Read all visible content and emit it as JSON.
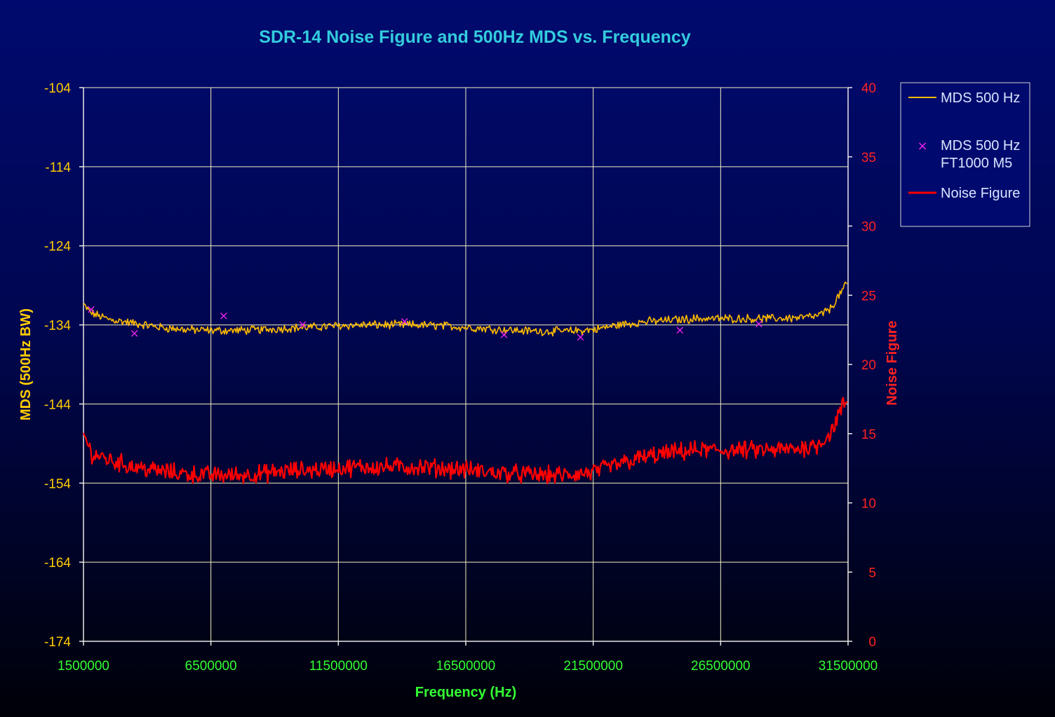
{
  "chart_data": {
    "type": "line",
    "title": "SDR-14 Noise Figure and 500Hz MDS vs. Frequency",
    "xlabel": "Frequency (Hz)",
    "ylabel_left": "MDS (500Hz BW)",
    "ylabel_right": "Noise Figure",
    "xlim": [
      1500000,
      31500000
    ],
    "ylim_left": [
      -174,
      -104
    ],
    "ylim_right": [
      0,
      40
    ],
    "x_ticks": [
      "1500000",
      "6500000",
      "11500000",
      "16500000",
      "21500000",
      "26500000",
      "31500000"
    ],
    "y_ticks_left": [
      "-104",
      "-114",
      "-124",
      "-134",
      "-144",
      "-154",
      "-164",
      "-174"
    ],
    "y_ticks_right": [
      "40",
      "35",
      "30",
      "25",
      "20",
      "15",
      "10",
      "5",
      "0"
    ],
    "grid": true,
    "legend_position": "right",
    "colors": {
      "mds": "#ffbb00",
      "ft1000": "#ee22ee",
      "noise_figure": "#ff0000",
      "grid": "#f2f2c0",
      "axes": "#e8e8e8"
    },
    "series": [
      {
        "name": "MDS 500 Hz",
        "axis": "left",
        "style": "line",
        "x": [
          1500000,
          1800000,
          2500000,
          3500000,
          4500000,
          5500000,
          6500000,
          7500000,
          8500000,
          9500000,
          10500000,
          11500000,
          12500000,
          13500000,
          14500000,
          15500000,
          16500000,
          17500000,
          18500000,
          19500000,
          20500000,
          21500000,
          22500000,
          23500000,
          24500000,
          25500000,
          26500000,
          27500000,
          28500000,
          29500000,
          30300000,
          30800000,
          31100000,
          31300000,
          31500000
        ],
        "y": [
          -131.5,
          -132.5,
          -133.3,
          -133.8,
          -134.3,
          -134.6,
          -134.7,
          -134.7,
          -134.6,
          -134.4,
          -134.3,
          -134.1,
          -134.0,
          -134.0,
          -134.0,
          -134.1,
          -134.3,
          -134.5,
          -134.7,
          -134.8,
          -134.8,
          -134.6,
          -134.0,
          -133.6,
          -133.4,
          -133.2,
          -133.2,
          -133.2,
          -133.2,
          -133.1,
          -132.9,
          -132.0,
          -130.5,
          -129.5,
          -128.7
        ]
      },
      {
        "name": "MDS 500 Hz FT1000 M5",
        "axis": "left",
        "style": "markers",
        "x": [
          1800000,
          3500000,
          7000000,
          10100000,
          14100000,
          18000000,
          21000000,
          24900000,
          28000000
        ],
        "y": [
          -132.0,
          -135.0,
          -132.8,
          -133.9,
          -133.5,
          -135.2,
          -135.5,
          -134.6,
          -133.8
        ]
      },
      {
        "name": "Noise Figure",
        "axis": "right",
        "style": "line",
        "x": [
          1500000,
          1800000,
          2500000,
          3500000,
          4500000,
          5500000,
          6500000,
          7500000,
          8500000,
          9500000,
          10500000,
          11500000,
          12500000,
          13500000,
          14500000,
          15500000,
          16500000,
          17500000,
          18500000,
          19500000,
          20500000,
          21500000,
          22500000,
          23500000,
          24500000,
          25500000,
          26500000,
          27500000,
          28500000,
          29500000,
          30300000,
          30800000,
          31100000,
          31300000,
          31500000
        ],
        "y": [
          15.0,
          13.6,
          13.1,
          12.6,
          12.3,
          12.1,
          12.0,
          12.0,
          12.1,
          12.3,
          12.4,
          12.5,
          12.6,
          12.6,
          12.6,
          12.5,
          12.4,
          12.2,
          12.1,
          12.0,
          12.0,
          12.2,
          12.8,
          13.3,
          13.6,
          13.8,
          13.8,
          13.8,
          13.8,
          13.9,
          14.2,
          15.0,
          16.2,
          17.0,
          17.5
        ]
      }
    ],
    "legend": {
      "items": [
        {
          "line1": "MDS 500 Hz",
          "line2": ""
        },
        {
          "line1": "MDS 500 Hz",
          "line2": "FT1000 M5"
        },
        {
          "line1": "Noise Figure",
          "line2": ""
        }
      ]
    }
  }
}
